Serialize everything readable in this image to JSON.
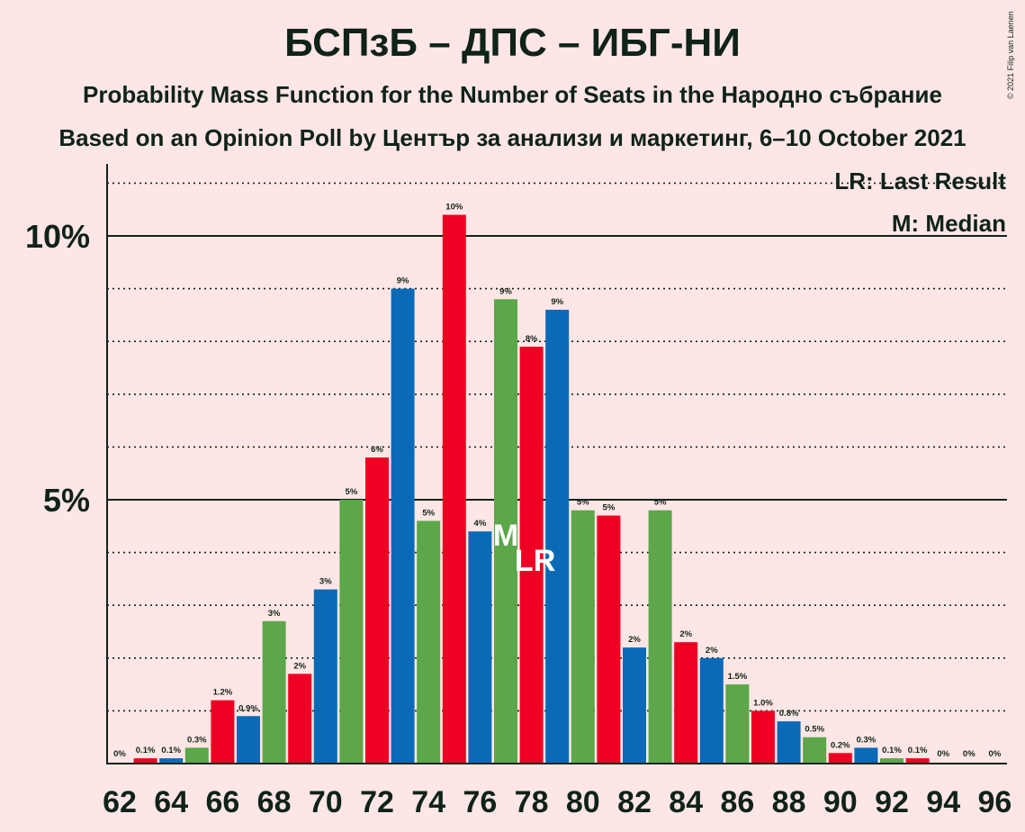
{
  "title": "БСПзБ – ДПС – ИБГ-НИ",
  "subtitle1": "Probability Mass Function for the Number of Seats in the Народно събрание",
  "subtitle2": "Based on an Opinion Poll by Център за анализи и маркетинг, 6–10 October 2021",
  "copyright": "© 2021 Filip van Laenen",
  "legend": {
    "lr": "LR: Last Result",
    "m": "M: Median"
  },
  "colors": {
    "background": "#FFE6E6",
    "text": "#0F2318",
    "blue": "#0A6AB8",
    "red": "#EF0022",
    "green": "#5BA74A"
  },
  "chart_data": {
    "type": "bar",
    "xlabel": "",
    "ylabel": "",
    "ylim": [
      0,
      11.3
    ],
    "yticks": [
      {
        "value": 5,
        "label": "5%"
      },
      {
        "value": 10,
        "label": "10%"
      }
    ],
    "grid_dotted_every": 1,
    "x_tick_labels": [
      "62",
      "64",
      "66",
      "68",
      "70",
      "72",
      "74",
      "76",
      "78",
      "80",
      "82",
      "84",
      "86",
      "88",
      "90",
      "92",
      "94",
      "96"
    ],
    "seats": [
      62,
      63,
      64,
      65,
      66,
      67,
      68,
      69,
      70,
      71,
      72,
      73,
      74,
      75,
      76,
      77,
      78,
      79,
      80,
      81,
      82,
      83,
      84,
      85,
      86,
      87,
      88,
      89,
      90,
      91,
      92,
      93,
      94,
      95,
      96
    ],
    "values": [
      0,
      0.1,
      0.1,
      0.3,
      1.2,
      0.9,
      2.7,
      1.7,
      3.3,
      5.0,
      5.8,
      9.0,
      4.6,
      10.4,
      4.4,
      8.8,
      7.9,
      8.6,
      4.8,
      4.7,
      2.2,
      4.8,
      2.3,
      2.0,
      1.5,
      1.0,
      0.8,
      0.5,
      0.2,
      0.3,
      0.1,
      0.1,
      0.0,
      0,
      0
    ],
    "labels": [
      "0%",
      "0.1%",
      "0.1%",
      "0.3%",
      "1.2%",
      "0.9%",
      "3%",
      "2%",
      "3%",
      "5%",
      "6%",
      "9%",
      "5%",
      "10%",
      "4%",
      "9%",
      "8%",
      "9%",
      "5%",
      "5%",
      "2%",
      "5%",
      "2%",
      "2%",
      "1.5%",
      "1.0%",
      "0.8%",
      "0.5%",
      "0.2%",
      "0.3%",
      "0.1%",
      "0.1%",
      "0%",
      "0%",
      "0%"
    ],
    "colors": [
      "none",
      "red",
      "blue",
      "green",
      "red",
      "blue",
      "green",
      "red",
      "blue",
      "green",
      "red",
      "blue",
      "green",
      "red",
      "blue",
      "green",
      "red",
      "blue",
      "green",
      "red",
      "blue",
      "green",
      "red",
      "blue",
      "green",
      "red",
      "blue",
      "green",
      "red",
      "blue",
      "green",
      "red",
      "blue",
      "none",
      "none"
    ],
    "last_result_seat": 78,
    "median_seat": 77,
    "last_result_marker": "LR",
    "median_marker": "M"
  }
}
